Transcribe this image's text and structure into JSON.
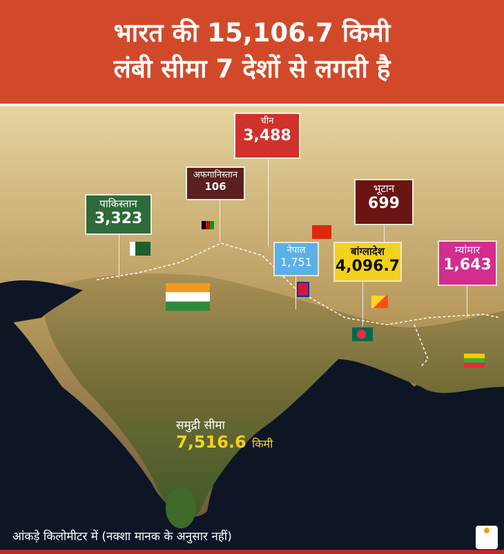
{
  "title": {
    "line1": "भारत की 15,106.7 किमी",
    "line2": "लंबी सीमा 7 देशों से लगती है"
  },
  "borders": [
    {
      "country": "चीन",
      "km": "3,488",
      "color": "#d0312d",
      "flag": "china-flag-icon"
    },
    {
      "country": "अफगानिस्तान",
      "km": "106",
      "color": "#5a1f1f",
      "flag": "afghanistan-flag-icon"
    },
    {
      "country": "पाकिस्तान",
      "km": "3,323",
      "color": "#2e6a3a",
      "flag": "pakistan-flag-icon"
    },
    {
      "country": "भूटान",
      "km": "699",
      "color": "#6b1414",
      "flag": "bhutan-flag-icon"
    },
    {
      "country": "नेपाल",
      "km": "1,751",
      "color": "#5ab0e8",
      "flag": "nepal-flag-icon"
    },
    {
      "country": "बांग्लादेश",
      "km": "4,096.7",
      "color": "#f4d21c",
      "flag": "bangladesh-flag-icon"
    },
    {
      "country": "म्यांमार",
      "km": "1,643",
      "color": "#d22d8f",
      "flag": "myanmar-flag-icon"
    }
  ],
  "sea": {
    "label": "समुद्री सीमा",
    "km": "7,516.6",
    "unit": "किमी"
  },
  "footer": "आंकड़े किलोमीटर में (नक्शा मानक के अनुसार नहीं)",
  "logo": "दैनिक भास्कर"
}
